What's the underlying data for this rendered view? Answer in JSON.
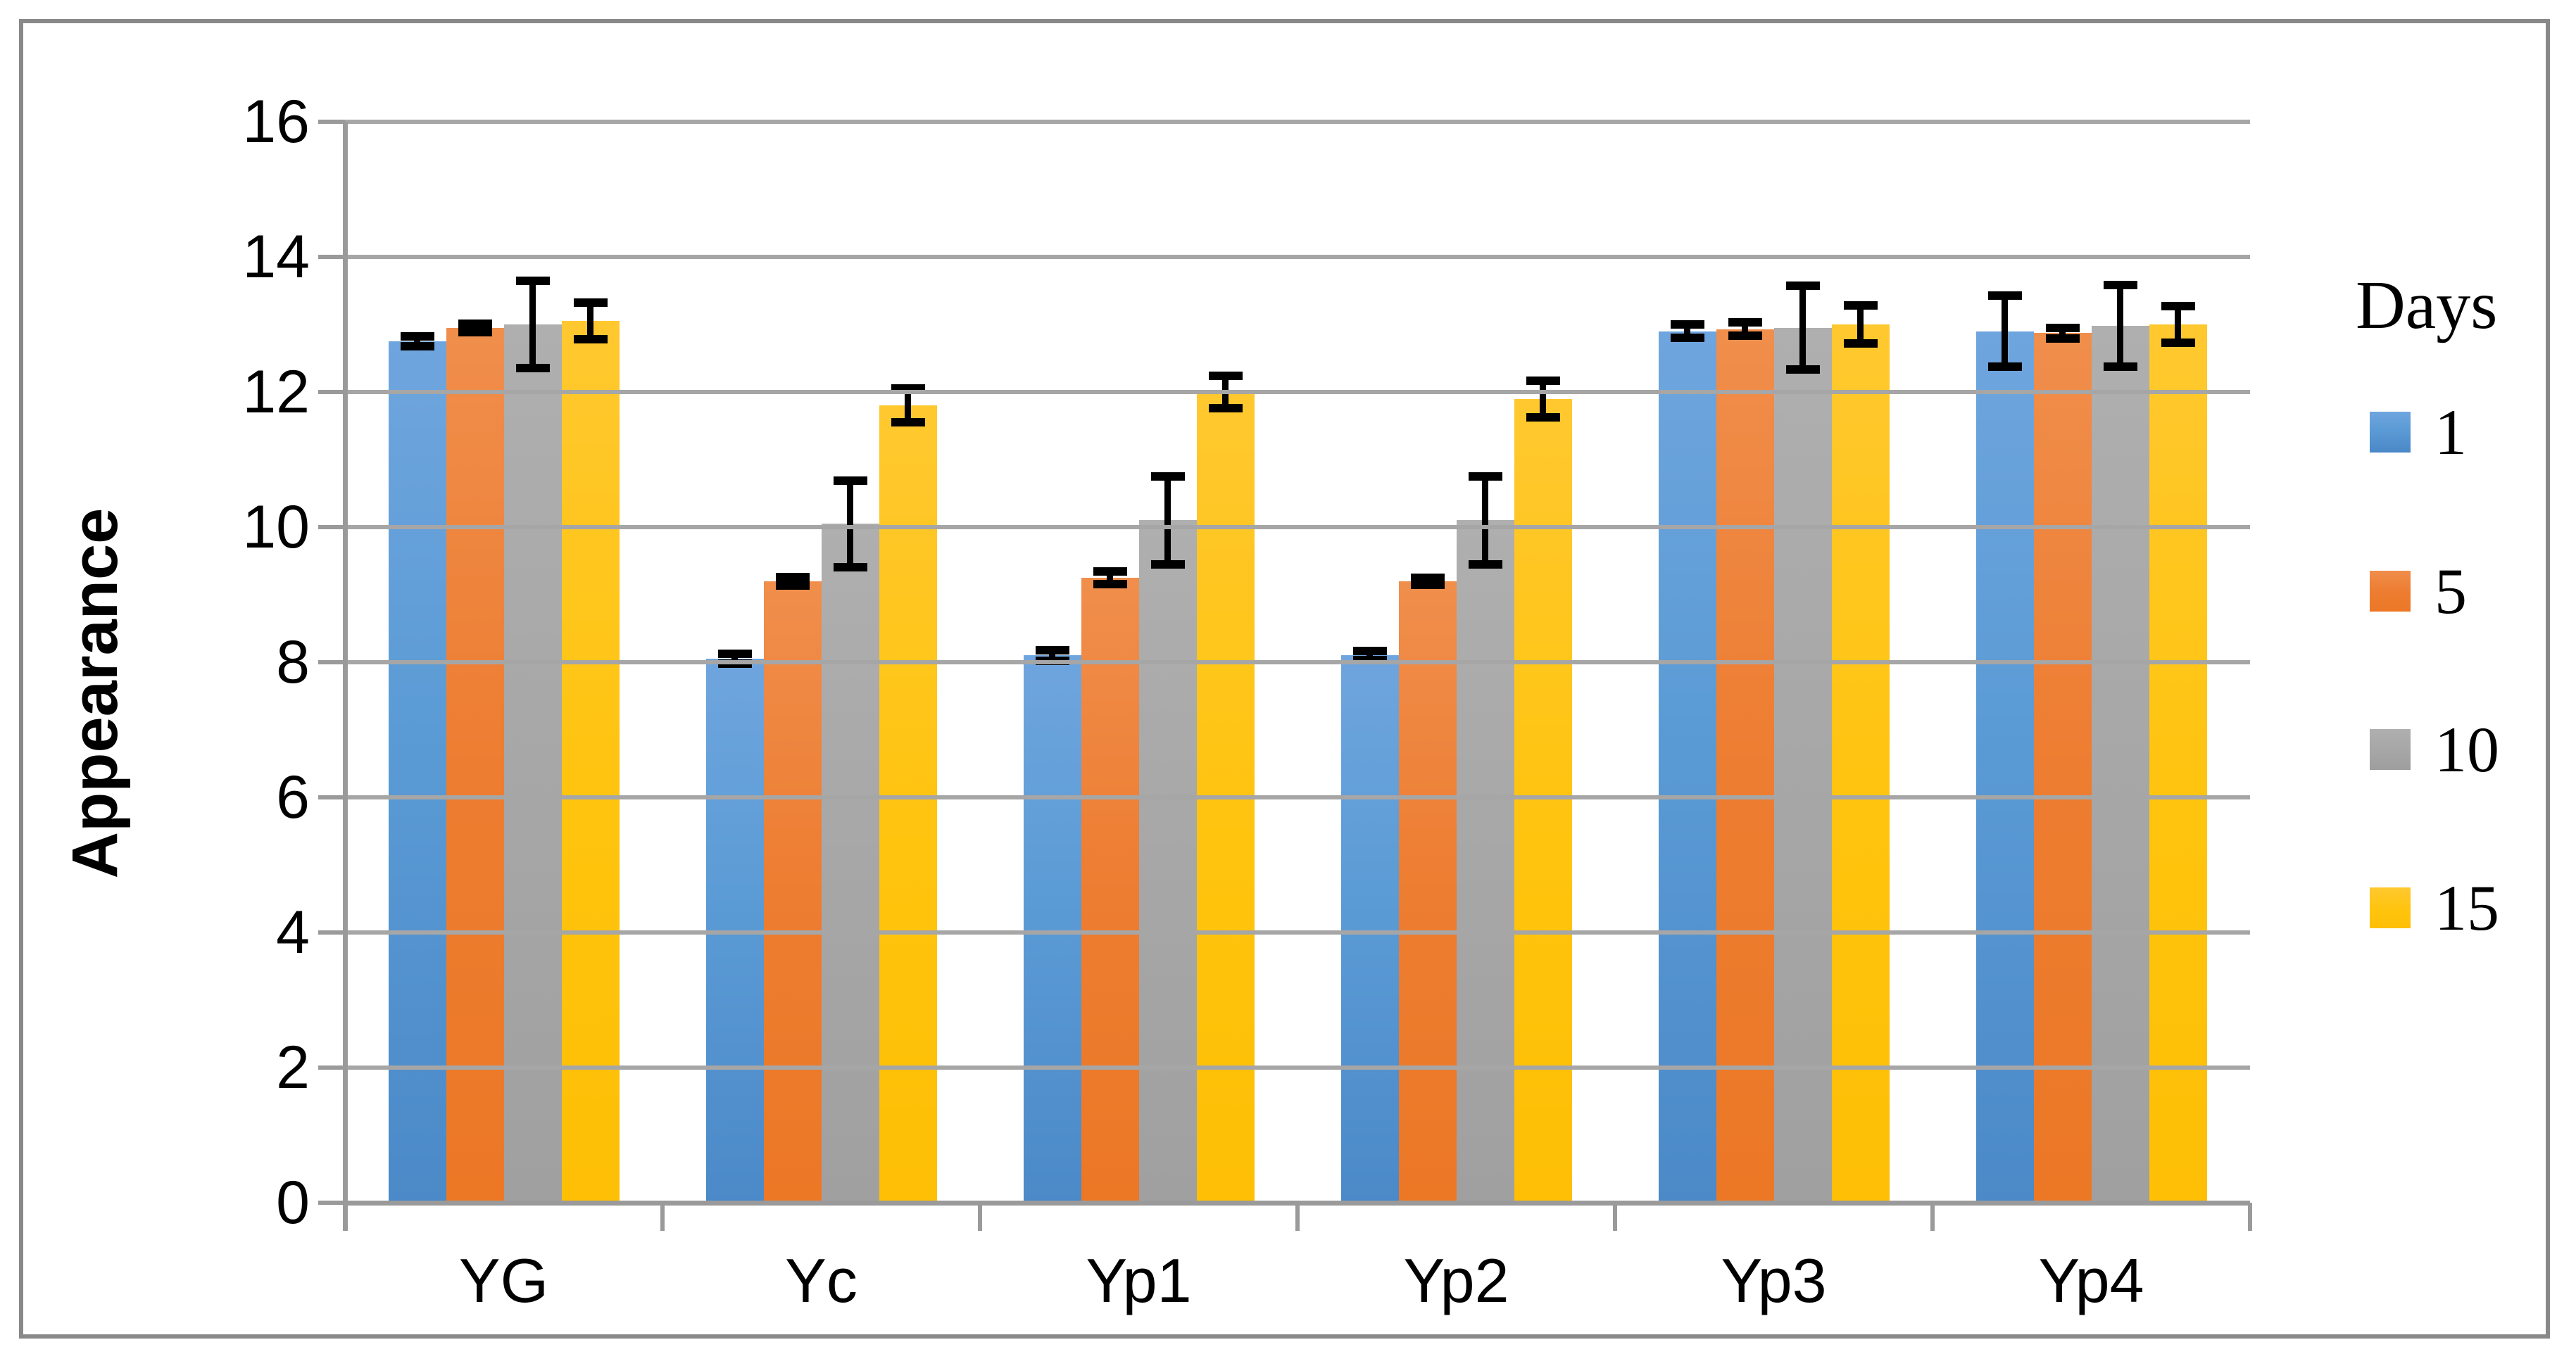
{
  "figure": {
    "background": "#ffffff",
    "border_color": "#898989",
    "gridline_color": "#a6a6a6",
    "axis_line_color": "#9a9a9a",
    "error_bar_color": "#000000"
  },
  "chart_data": {
    "type": "bar",
    "title": "",
    "ylabel": "Appearance",
    "xlabel": "",
    "ylim": [
      0,
      16
    ],
    "ytick_step": 2,
    "y_ticks": [
      "16",
      "14",
      "12",
      "10",
      "8",
      "6",
      "4",
      "2",
      "0"
    ],
    "grid": true,
    "legend_position": "right",
    "legend_title": "Days",
    "categories": [
      "YG",
      "Yc",
      "Yp1",
      "Yp2",
      "Yp3",
      "Yp4"
    ],
    "series": [
      {
        "name": "1",
        "color": "#5b9bd5",
        "values": [
          12.75,
          8.05,
          8.1,
          8.1,
          12.9,
          12.9
        ],
        "errors": [
          0.07,
          0.07,
          0.08,
          0.07,
          0.1,
          0.53
        ]
      },
      {
        "name": "5",
        "color": "#ed7d31",
        "values": [
          12.95,
          9.2,
          9.25,
          9.2,
          12.93,
          12.87
        ],
        "errors": [
          0.06,
          0.06,
          0.09,
          0.05,
          0.1,
          0.08
        ]
      },
      {
        "name": "10",
        "color": "#a5a5a5",
        "values": [
          13.0,
          10.05,
          10.1,
          10.1,
          12.95,
          12.98
        ],
        "errors": [
          0.65,
          0.64,
          0.65,
          0.65,
          0.62,
          0.6
        ]
      },
      {
        "name": "15",
        "color": "#ffc000",
        "values": [
          13.05,
          11.8,
          12.0,
          11.9,
          13.0,
          13.0
        ],
        "errors": [
          0.27,
          0.25,
          0.24,
          0.27,
          0.28,
          0.27
        ]
      }
    ]
  }
}
